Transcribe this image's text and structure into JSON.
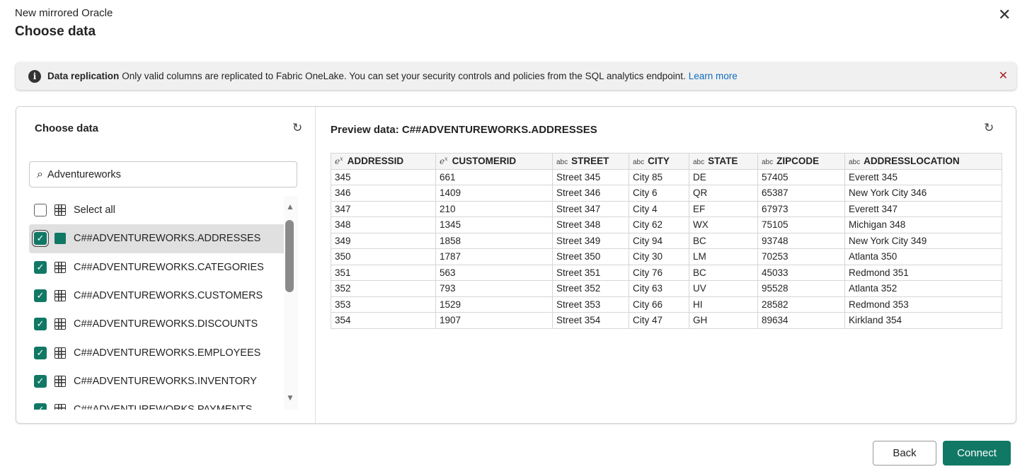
{
  "header": {
    "subtitle": "New mirrored Oracle",
    "title": "Choose data"
  },
  "banner": {
    "title": "Data replication",
    "text": "Only valid columns are replicated to Fabric OneLake. You can set your security controls and policies from the SQL analytics endpoint.",
    "link": "Learn more"
  },
  "left": {
    "title": "Choose data",
    "search_value": "Adventureworks",
    "select_all": "Select all",
    "items": [
      {
        "label": "C##ADVENTUREWORKS.ADDRESSES",
        "checked": true,
        "selected": true
      },
      {
        "label": "C##ADVENTUREWORKS.CATEGORIES",
        "checked": true
      },
      {
        "label": "C##ADVENTUREWORKS.CUSTOMERS",
        "checked": true
      },
      {
        "label": "C##ADVENTUREWORKS.DISCOUNTS",
        "checked": true
      },
      {
        "label": "C##ADVENTUREWORKS.EMPLOYEES",
        "checked": true
      },
      {
        "label": "C##ADVENTUREWORKS.INVENTORY",
        "checked": true
      },
      {
        "label": "C##ADVENTUREWORKS.PAYMENTS",
        "checked": true
      }
    ]
  },
  "preview": {
    "title": "Preview data: C##ADVENTUREWORKS.ADDRESSES",
    "columns": [
      {
        "name": "ADDRESSID",
        "type": "e^x"
      },
      {
        "name": "CUSTOMERID",
        "type": "e^x"
      },
      {
        "name": "STREET",
        "type": "abc"
      },
      {
        "name": "CITY",
        "type": "abc"
      },
      {
        "name": "STATE",
        "type": "abc"
      },
      {
        "name": "ZIPCODE",
        "type": "abc"
      },
      {
        "name": "ADDRESSLOCATION",
        "type": "abc"
      }
    ],
    "rows": [
      [
        "345",
        "661",
        "Street 345",
        "City 85",
        "DE",
        "57405",
        "Everett 345"
      ],
      [
        "346",
        "1409",
        "Street 346",
        "City 6",
        "QR",
        "65387",
        "New York City 346"
      ],
      [
        "347",
        "210",
        "Street 347",
        "City 4",
        "EF",
        "67973",
        "Everett 347"
      ],
      [
        "348",
        "1345",
        "Street 348",
        "City 62",
        "WX",
        "75105",
        "Michigan 348"
      ],
      [
        "349",
        "1858",
        "Street 349",
        "City 94",
        "BC",
        "93748",
        "New York City 349"
      ],
      [
        "350",
        "1787",
        "Street 350",
        "City 30",
        "LM",
        "70253",
        "Atlanta 350"
      ],
      [
        "351",
        "563",
        "Street 351",
        "City 76",
        "BC",
        "45033",
        "Redmond 351"
      ],
      [
        "352",
        "793",
        "Street 352",
        "City 63",
        "UV",
        "95528",
        "Atlanta 352"
      ],
      [
        "353",
        "1529",
        "Street 353",
        "City 66",
        "HI",
        "28582",
        "Redmond 353"
      ],
      [
        "354",
        "1907",
        "Street 354",
        "City 47",
        "GH",
        "89634",
        "Kirkland 354"
      ]
    ]
  },
  "footer": {
    "back": "Back",
    "connect": "Connect"
  },
  "colors": {
    "accent": "#117865"
  }
}
